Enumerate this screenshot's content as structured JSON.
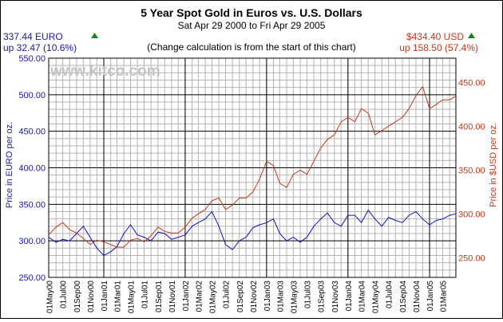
{
  "header": {
    "title": "5 Year Spot Gold in Euros vs. U.S. Dollars",
    "subtitle": "Sat Apr 29 2000 to Fri Apr 29 2005",
    "note": "(Change calculation is from the start of this chart)",
    "watermark": "www.kitco.com"
  },
  "euro_box": {
    "price": "337.44 EURO",
    "change": "up 32.47 (10.6%)",
    "color": "#1a1aa6"
  },
  "usd_box": {
    "price": "$434.40 USD",
    "change": "up 158.50 (57.4%)",
    "color": "#c0391b"
  },
  "colors": {
    "up_arrow": "#138a13",
    "grid": "#b4b4b4",
    "grid_major": "#000000",
    "euro_line": "#1111bb",
    "usd_line": "#c0391b"
  },
  "chart_data": {
    "type": "line",
    "title": "5 Year Spot Gold in Euros vs. U.S. Dollars",
    "left_axis": {
      "label": "Price in EURO per oz.",
      "ylim": [
        250,
        550
      ],
      "ticks": [
        "250.00",
        "300.00",
        "350.00",
        "400.00",
        "450.00",
        "500.00",
        "550.00"
      ]
    },
    "right_axis": {
      "label": "Price in $USD per oz.",
      "ylim": [
        227.5,
        477.5
      ],
      "ticks": [
        "250.00",
        "300.00",
        "350.00",
        "400.00",
        "450.00"
      ]
    },
    "x_ticks": [
      "01May00",
      "01Jul00",
      "01Sep00",
      "01Nov00",
      "01Jan01",
      "01Mar01",
      "01May01",
      "01Jul01",
      "01Sep01",
      "01Nov01",
      "01Jan02",
      "01Mar02",
      "01May02",
      "01Jul02",
      "01Sep02",
      "01Nov02",
      "01Jan03",
      "01Mar03",
      "01May03",
      "01Jul03",
      "01Sep03",
      "01Nov03",
      "01Jan04",
      "01Mar04",
      "01May04",
      "01Jul04",
      "01Sep04",
      "01Nov04",
      "01Jan05",
      "01Mar05"
    ],
    "grid": true,
    "series": [
      {
        "name": "EURO",
        "axis": "left",
        "x": [
          "2000-04-29",
          "2000-06-01",
          "2000-07-01",
          "2000-08-01",
          "2000-09-01",
          "2000-10-01",
          "2000-11-01",
          "2000-12-01",
          "2001-01-01",
          "2001-02-01",
          "2001-03-01",
          "2001-04-01",
          "2001-05-01",
          "2001-06-01",
          "2001-07-01",
          "2001-08-01",
          "2001-09-01",
          "2001-10-01",
          "2001-11-01",
          "2001-12-01",
          "2002-01-01",
          "2002-02-01",
          "2002-03-01",
          "2002-04-01",
          "2002-05-01",
          "2002-06-01",
          "2002-07-01",
          "2002-08-01",
          "2002-09-01",
          "2002-10-01",
          "2002-11-01",
          "2002-12-01",
          "2003-01-01",
          "2003-02-01",
          "2003-03-01",
          "2003-04-01",
          "2003-05-01",
          "2003-06-01",
          "2003-07-01",
          "2003-08-01",
          "2003-09-01",
          "2003-10-01",
          "2003-11-01",
          "2003-12-01",
          "2004-01-01",
          "2004-02-01",
          "2004-03-01",
          "2004-04-01",
          "2004-05-01",
          "2004-06-01",
          "2004-07-01",
          "2004-08-01",
          "2004-09-01",
          "2004-10-01",
          "2004-11-01",
          "2004-12-01",
          "2005-01-01",
          "2005-02-01",
          "2005-03-01",
          "2005-04-01",
          "2005-04-29"
        ],
        "values": [
          305,
          298,
          302,
          300,
          310,
          320,
          305,
          290,
          280,
          285,
          292,
          310,
          322,
          308,
          305,
          300,
          312,
          310,
          302,
          305,
          308,
          320,
          325,
          330,
          340,
          320,
          295,
          288,
          300,
          305,
          318,
          322,
          325,
          330,
          310,
          300,
          305,
          298,
          305,
          320,
          330,
          338,
          325,
          320,
          335,
          335,
          325,
          342,
          330,
          320,
          332,
          328,
          325,
          335,
          340,
          330,
          322,
          328,
          330,
          335,
          337
        ]
      },
      {
        "name": "USD",
        "axis": "right",
        "x": [
          "2000-04-29",
          "2000-06-01",
          "2000-07-01",
          "2000-08-01",
          "2000-09-01",
          "2000-10-01",
          "2000-11-01",
          "2000-12-01",
          "2001-01-01",
          "2001-02-01",
          "2001-03-01",
          "2001-04-01",
          "2001-05-01",
          "2001-06-01",
          "2001-07-01",
          "2001-08-01",
          "2001-09-01",
          "2001-10-01",
          "2001-11-01",
          "2001-12-01",
          "2002-01-01",
          "2002-02-01",
          "2002-03-01",
          "2002-04-01",
          "2002-05-01",
          "2002-06-01",
          "2002-07-01",
          "2002-08-01",
          "2002-09-01",
          "2002-10-01",
          "2002-11-01",
          "2002-12-01",
          "2003-01-01",
          "2003-02-01",
          "2003-03-01",
          "2003-04-01",
          "2003-05-01",
          "2003-06-01",
          "2003-07-01",
          "2003-08-01",
          "2003-09-01",
          "2003-10-01",
          "2003-11-01",
          "2003-12-01",
          "2004-01-01",
          "2004-02-01",
          "2004-03-01",
          "2004-04-01",
          "2004-05-01",
          "2004-06-01",
          "2004-07-01",
          "2004-08-01",
          "2004-09-01",
          "2004-10-01",
          "2004-11-01",
          "2004-12-01",
          "2005-01-01",
          "2005-02-01",
          "2005-03-01",
          "2005-04-01",
          "2005-04-29"
        ],
        "values": [
          276,
          285,
          290,
          282,
          278,
          272,
          265,
          270,
          268,
          265,
          262,
          262,
          270,
          272,
          268,
          275,
          285,
          280,
          278,
          278,
          285,
          295,
          300,
          305,
          315,
          318,
          305,
          310,
          318,
          318,
          325,
          340,
          360,
          355,
          335,
          330,
          345,
          350,
          345,
          360,
          375,
          385,
          390,
          405,
          410,
          405,
          420,
          415,
          390,
          395,
          400,
          405,
          410,
          420,
          435,
          445,
          420,
          425,
          430,
          430,
          434.4
        ]
      }
    ]
  }
}
